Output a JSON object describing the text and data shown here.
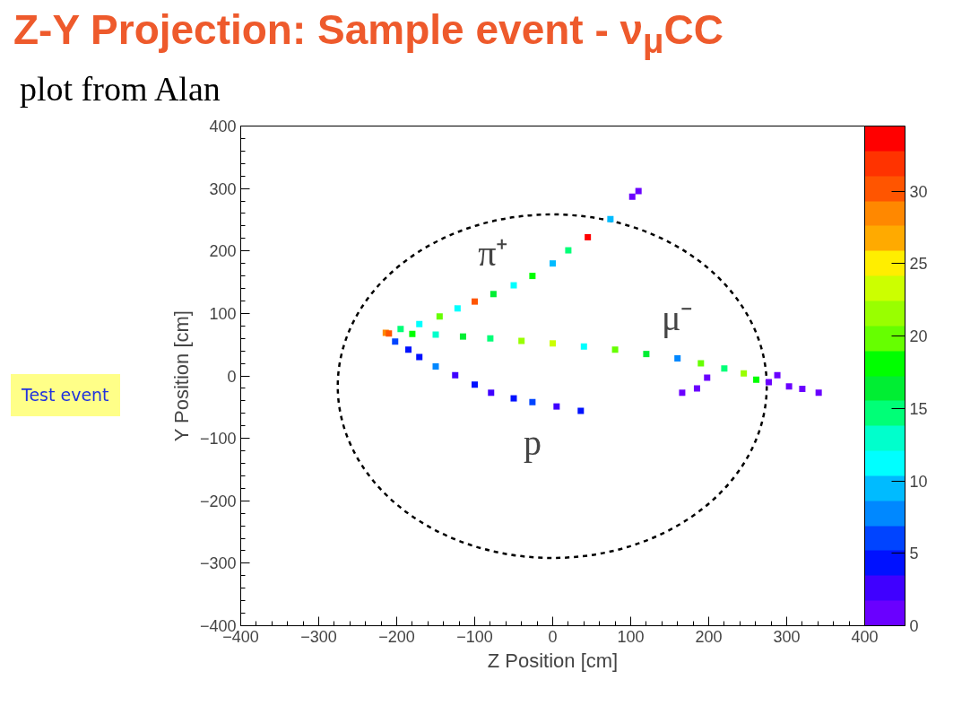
{
  "chart_data": {
    "type": "scatter",
    "title": "Z-Y Projection: Sample event  - ν$_{μ}$CC",
    "subtitle": "plot from Alan",
    "xlabel": "Z Position [cm]",
    "ylabel": "Y Position [cm]",
    "xlim": [
      -400,
      400
    ],
    "ylim": [
      -400,
      400
    ],
    "xticks": [
      -400,
      -300,
      -200,
      -100,
      0,
      100,
      200,
      300,
      400
    ],
    "yticks": [
      -400,
      -300,
      -200,
      -100,
      0,
      100,
      200,
      300,
      400
    ],
    "clim": [
      0,
      34.5
    ],
    "cticks": [
      0,
      5,
      10,
      15,
      20,
      25,
      30
    ],
    "marker": "square",
    "grid": false,
    "series": [
      {
        "x": [
          -214,
          -195,
          -171,
          -145,
          -122,
          -100,
          -76,
          -50,
          -26,
          0,
          20,
          45,
          74,
          -210,
          -180,
          -150,
          -115,
          -80,
          -40,
          0,
          40,
          80,
          120,
          160,
          190,
          220,
          245,
          261,
          -202,
          -185,
          -171,
          -150,
          -125,
          -100,
          -79,
          -50,
          -26,
          5,
          36,
          102,
          110,
          166,
          185,
          198,
          277,
          288,
          303,
          320,
          341
        ],
        "values": [
          69,
          75,
          83,
          95,
          108,
          119,
          131,
          145,
          160,
          180,
          201,
          222,
          251,
          68,
          67,
          66,
          63,
          60,
          56,
          52,
          47,
          42,
          35,
          28,
          20,
          12,
          4,
          -6,
          55,
          42,
          30,
          15,
          1,
          -14,
          -27,
          -36,
          -42,
          -49,
          -56,
          287,
          296,
          -27,
          -20,
          -3,
          -10,
          1,
          -17,
          -21,
          -27
        ],
        "cvalues": [
          28,
          14,
          12,
          20,
          11,
          31,
          16,
          12,
          18,
          10,
          15,
          33,
          9,
          30,
          18,
          13,
          17,
          14,
          21,
          24,
          12,
          19,
          16,
          7,
          20,
          14,
          22,
          18,
          6,
          5,
          4,
          7,
          3,
          5,
          2,
          4,
          6,
          3,
          4,
          1,
          1,
          1,
          1,
          1,
          1,
          1,
          1,
          1,
          1
        ]
      }
    ],
    "annotations": [
      {
        "text": "π⁺",
        "x": -76,
        "y": 131
      },
      {
        "text": "μ⁻",
        "x": 160,
        "y": 28
      },
      {
        "text": "p",
        "x": -26,
        "y": -42
      },
      "Test event"
    ]
  }
}
